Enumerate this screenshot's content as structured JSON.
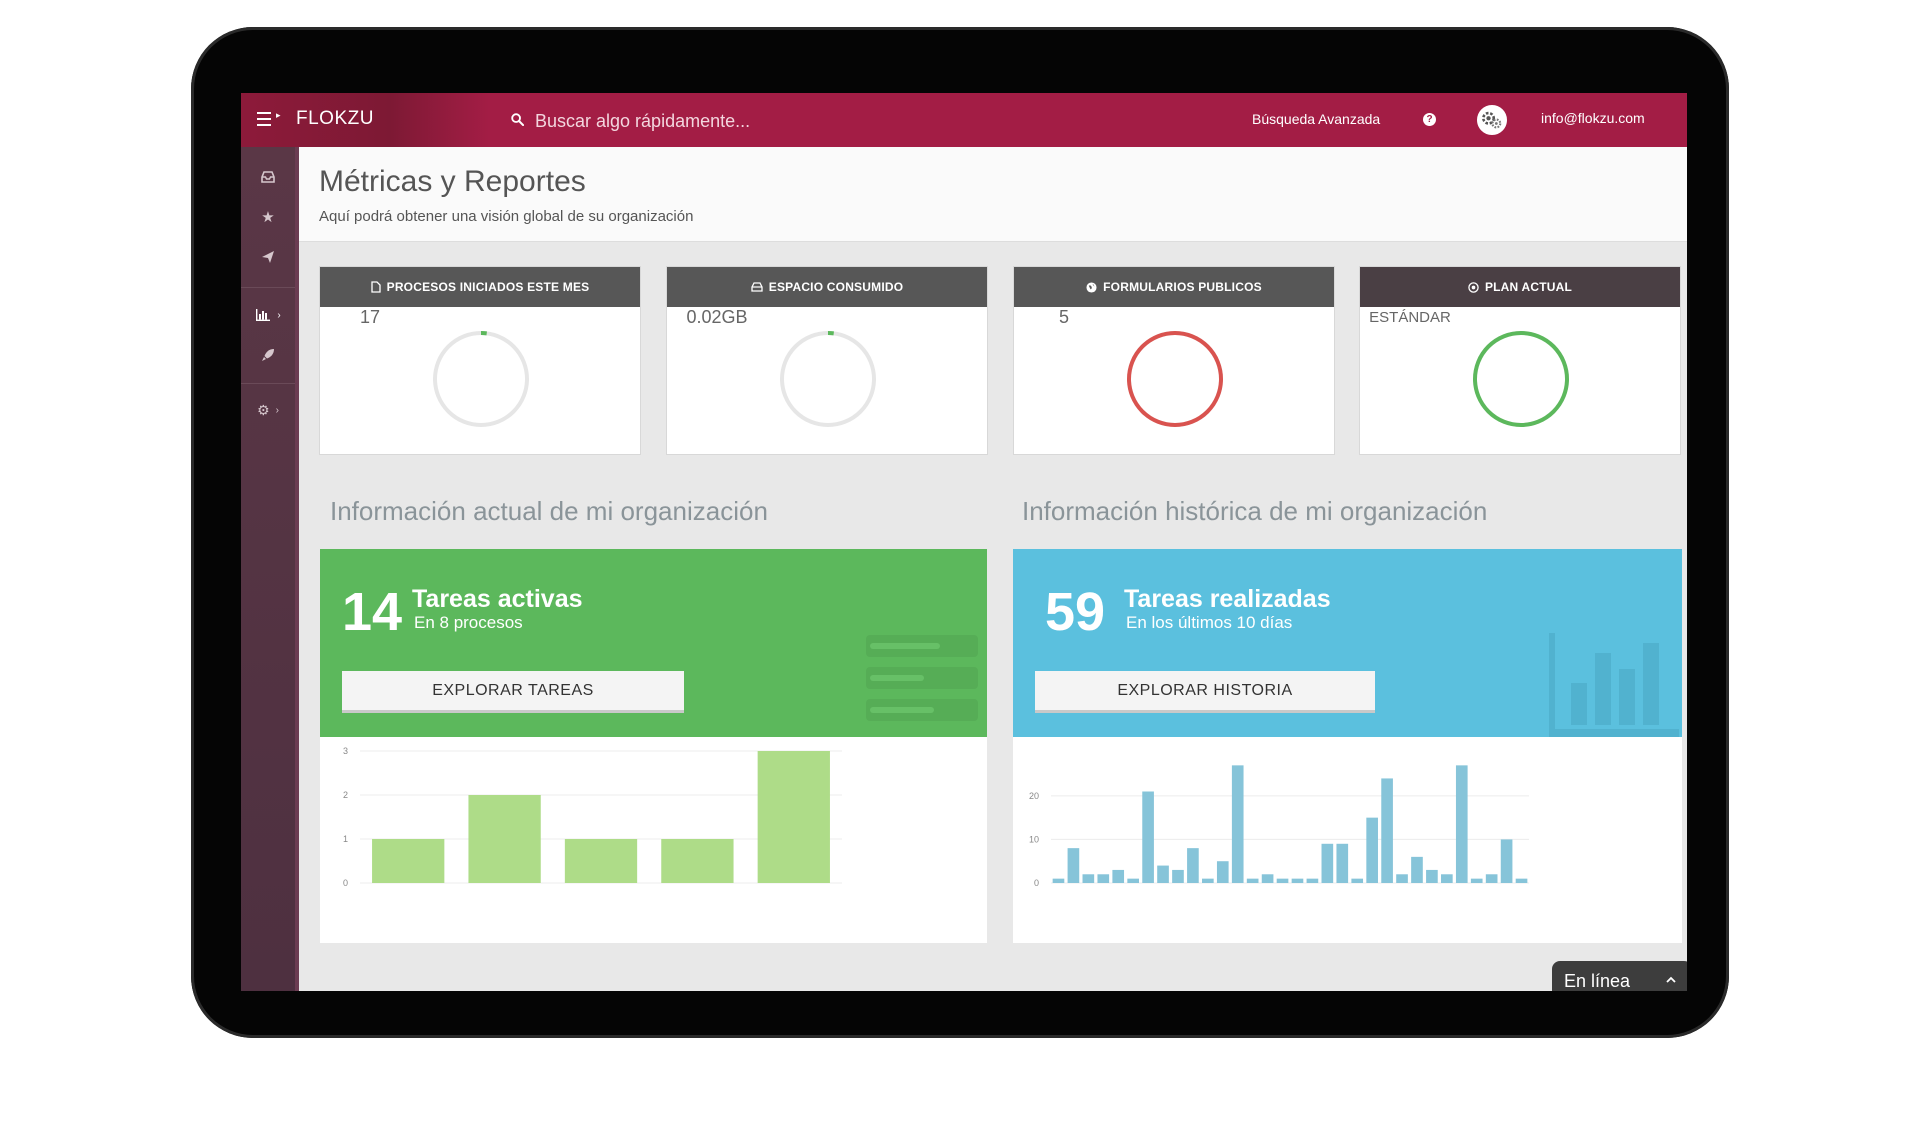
{
  "app": {
    "brand": "FLOKZU",
    "search_placeholder": "Buscar algo rápidamente...",
    "advanced_search": "Búsqueda Avanzada",
    "help": "?",
    "user_email": "info@flokzu.com"
  },
  "sidebar": {
    "items": [
      {
        "icon": "inbox-icon"
      },
      {
        "icon": "star-icon"
      },
      {
        "icon": "send-icon"
      },
      {
        "icon": "bar-chart-icon",
        "expandable": true
      },
      {
        "icon": "rocket-icon"
      },
      {
        "icon": "gear-icon",
        "expandable": true
      }
    ]
  },
  "header": {
    "title": "Métricas y Reportes",
    "subtitle": "Aquí podrá obtener una visión global de su organización"
  },
  "metrics": [
    {
      "label": "PROCESOS INICIADOS ESTE MES",
      "icon": "file-icon",
      "value": "17",
      "ring_color": "#5cb85c",
      "ring_fraction": 0.02
    },
    {
      "label": "ESPACIO CONSUMIDO",
      "icon": "storage-icon",
      "value": "0.02GB",
      "ring_color": "#5cb85c",
      "ring_fraction": 0.02
    },
    {
      "label": "FORMULARIOS PUBLICOS",
      "icon": "globe-icon",
      "value": "5",
      "ring_color": "#d9534f",
      "ring_fraction": 1
    },
    {
      "label": "PLAN ACTUAL",
      "icon": "target-icon",
      "value": "ESTÁNDAR",
      "ring_color": "#5cb85c",
      "ring_fraction": 1
    }
  ],
  "current": {
    "section_title": "Información actual de mi organización",
    "number": "14",
    "title": "Tareas activas",
    "subtitle": "En 8 procesos",
    "button": "EXPLORAR TAREAS",
    "color": "#5cb85c"
  },
  "history": {
    "section_title": "Información histórica de mi organización",
    "number": "59",
    "title": "Tareas realizadas",
    "subtitle": "En los últimos 10 días",
    "button": "EXPLORAR HISTORIA",
    "color": "#5bc0de"
  },
  "chart_data": [
    {
      "type": "bar",
      "categories": [
        "",
        "",
        "",
        "",
        ""
      ],
      "values": [
        1,
        2,
        1,
        1,
        3
      ],
      "ylim": [
        0,
        3
      ],
      "yticks": [
        "0",
        "1",
        "2",
        "3"
      ],
      "color": "#aedc88"
    },
    {
      "type": "bar",
      "values": [
        1,
        8,
        2,
        2,
        3,
        1,
        21,
        4,
        3,
        8,
        1,
        5,
        27,
        1,
        2,
        1,
        1,
        1,
        9,
        9,
        1,
        15,
        24,
        2,
        6,
        3,
        2,
        27,
        1,
        2,
        10,
        1
      ],
      "ylim": [
        0,
        28
      ],
      "yticks": [
        "0",
        "10",
        "20"
      ],
      "color": "#86c4d9"
    }
  ],
  "chat": {
    "label": "En línea"
  }
}
